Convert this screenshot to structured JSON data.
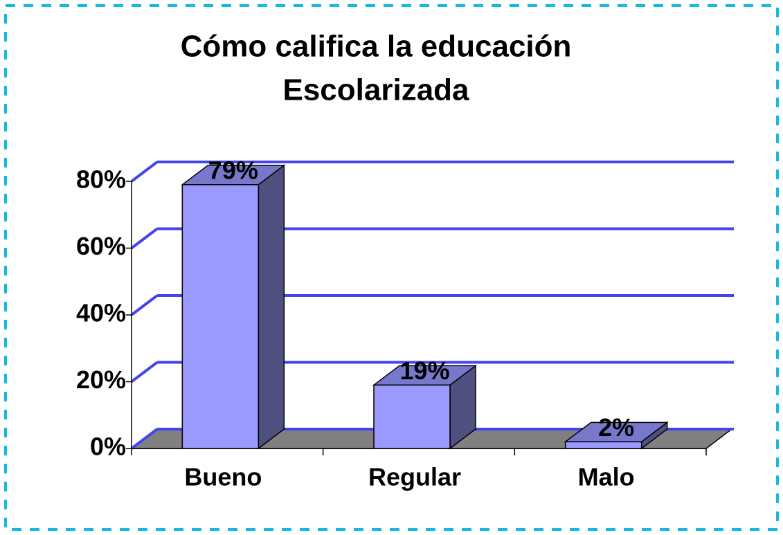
{
  "chart_data": {
    "type": "bar3d",
    "title": [
      "Cómo califica la educación",
      "Escolarizada"
    ],
    "categories": [
      "Bueno",
      "Regular",
      "Malo"
    ],
    "values": [
      79,
      19,
      2
    ],
    "value_labels": [
      "79%",
      "19%",
      "2%"
    ],
    "color": "#9999ff",
    "ylim": [
      0,
      80
    ],
    "yticks": [
      {
        "value": 0,
        "label": "0%"
      },
      {
        "value": 20,
        "label": "20%"
      },
      {
        "value": 40,
        "label": "40%"
      },
      {
        "value": 60,
        "label": "60%"
      },
      {
        "value": 80,
        "label": "80%"
      }
    ],
    "grid": true
  }
}
